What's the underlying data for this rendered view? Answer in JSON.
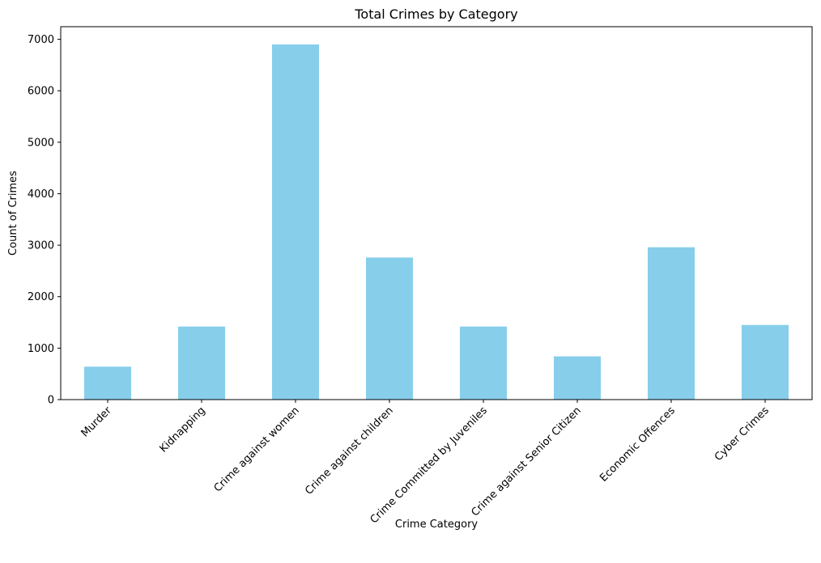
{
  "chart_data": {
    "type": "bar",
    "title": "Total Crimes by Category",
    "xlabel": "Crime Category",
    "ylabel": "Count of Crimes",
    "categories": [
      "Murder",
      "Kidnapping",
      "Crime against women",
      "Crime against children",
      "Crime Committed by Juveniles",
      "Crime against Senior Citizen",
      "Economic Offences",
      "Cyber Crimes"
    ],
    "values": [
      640,
      1420,
      6900,
      2760,
      1420,
      840,
      2960,
      1450
    ],
    "ylim": [
      0,
      7245
    ],
    "yticks": [
      0,
      1000,
      2000,
      3000,
      4000,
      5000,
      6000,
      7000
    ],
    "grid": false,
    "bar_color": "#87ceeb"
  }
}
